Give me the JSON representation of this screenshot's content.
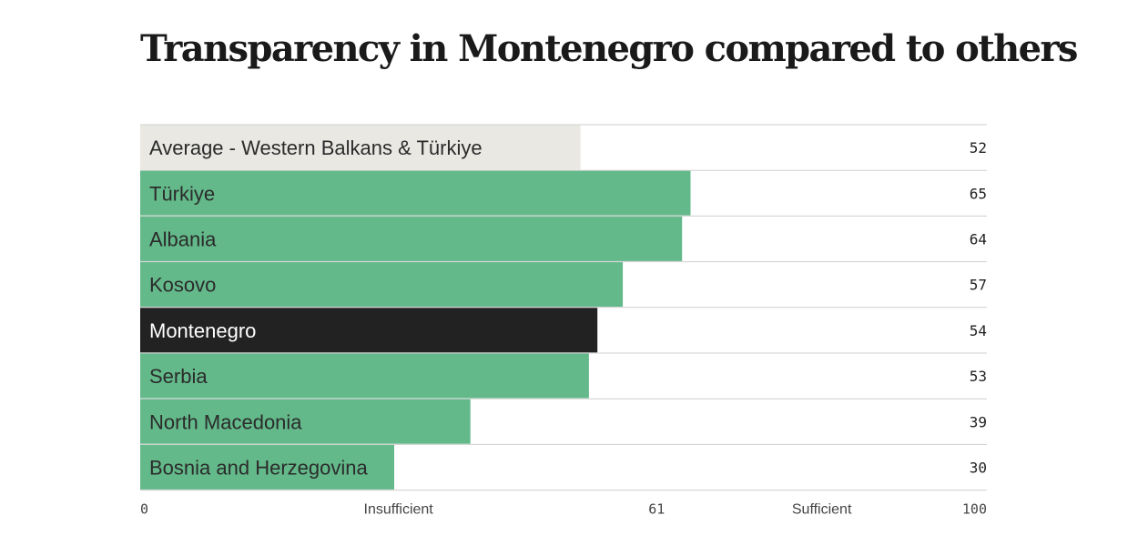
{
  "title": "Transparency in Montenegro compared to others",
  "colors": {
    "average": "#e9e8e3",
    "country": "#63b98a",
    "highlight": "#222222",
    "text_dark": "#2b2b2b",
    "text_light": "#ffffff",
    "row_line": "#cfcfcf"
  },
  "chart_data": {
    "type": "bar",
    "orientation": "horizontal",
    "xlim": [
      0,
      100
    ],
    "categories": [
      "Average - Western Balkans & Türkiye",
      "Türkiye",
      "Albania",
      "Kosovo",
      "Montenegro",
      "Serbia",
      "North Macedonia",
      "Bosnia and Herzegovina"
    ],
    "values": [
      52,
      65,
      64,
      57,
      54,
      53,
      39,
      30
    ],
    "styles": [
      "average",
      "country",
      "country",
      "country",
      "highlight",
      "country",
      "country",
      "country"
    ],
    "axis_ticks": [
      {
        "label": "0",
        "value": 0,
        "kind": "num"
      },
      {
        "label": "Insufficient",
        "value": 30.5,
        "kind": "word"
      },
      {
        "label": "61",
        "value": 61,
        "kind": "num"
      },
      {
        "label": "Sufficient",
        "value": 80.5,
        "kind": "word"
      },
      {
        "label": "100",
        "value": 100,
        "kind": "num"
      }
    ]
  }
}
